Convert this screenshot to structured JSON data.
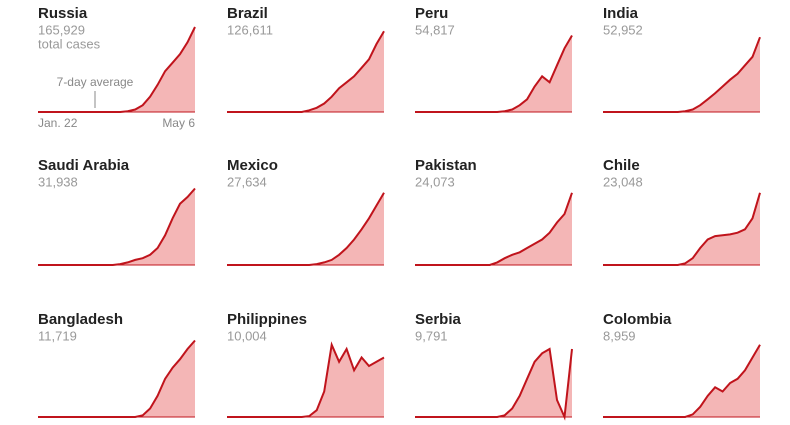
{
  "chart_data": {
    "type": "small-multiples",
    "total_note": "total cases",
    "average_note": "7-day average",
    "x_start": "Jan. 22",
    "x_end": "May 6",
    "ylim": [
      0,
      100
    ],
    "line_color": "#c0141c",
    "area_color": "#f4b6b6",
    "panels": [
      {
        "name": "Russia",
        "total": "165,929",
        "values": [
          0,
          0,
          0,
          0,
          0,
          0,
          0,
          0,
          0,
          0,
          0,
          0,
          1,
          3,
          8,
          18,
          32,
          48,
          58,
          68,
          82,
          100
        ]
      },
      {
        "name": "Brazil",
        "total": "126,611",
        "values": [
          0,
          0,
          0,
          0,
          0,
          0,
          0,
          0,
          0,
          0,
          0,
          2,
          5,
          10,
          18,
          28,
          35,
          42,
          52,
          62,
          80,
          95
        ]
      },
      {
        "name": "Peru",
        "total": "54,817",
        "values": [
          0,
          0,
          0,
          0,
          0,
          0,
          0,
          0,
          0,
          0,
          0,
          0,
          1,
          3,
          8,
          15,
          30,
          42,
          35,
          55,
          75,
          90
        ]
      },
      {
        "name": "India",
        "total": "52,952",
        "values": [
          0,
          0,
          0,
          0,
          0,
          0,
          0,
          0,
          0,
          0,
          0,
          1,
          3,
          8,
          15,
          22,
          30,
          38,
          45,
          55,
          65,
          88
        ]
      },
      {
        "name": "Saudi Arabia",
        "total": "31,938",
        "values": [
          0,
          0,
          0,
          0,
          0,
          0,
          0,
          0,
          0,
          0,
          0,
          1,
          3,
          6,
          8,
          12,
          20,
          35,
          55,
          72,
          80,
          90
        ]
      },
      {
        "name": "Mexico",
        "total": "27,634",
        "values": [
          0,
          0,
          0,
          0,
          0,
          0,
          0,
          0,
          0,
          0,
          0,
          0,
          1,
          3,
          6,
          12,
          20,
          30,
          42,
          55,
          70,
          85
        ]
      },
      {
        "name": "Pakistan",
        "total": "24,073",
        "values": [
          0,
          0,
          0,
          0,
          0,
          0,
          0,
          0,
          0,
          0,
          0,
          3,
          8,
          12,
          15,
          20,
          25,
          30,
          38,
          50,
          60,
          85
        ]
      },
      {
        "name": "Chile",
        "total": "23,048",
        "values": [
          0,
          0,
          0,
          0,
          0,
          0,
          0,
          0,
          0,
          0,
          0,
          2,
          8,
          20,
          30,
          34,
          35,
          36,
          38,
          42,
          55,
          85
        ]
      },
      {
        "name": "Bangladesh",
        "total": "11,719",
        "values": [
          0,
          0,
          0,
          0,
          0,
          0,
          0,
          0,
          0,
          0,
          0,
          0,
          0,
          0,
          2,
          10,
          25,
          45,
          58,
          68,
          80,
          90
        ]
      },
      {
        "name": "Philippines",
        "total": "10,004",
        "values": [
          0,
          0,
          0,
          0,
          0,
          0,
          0,
          0,
          0,
          0,
          0,
          1,
          8,
          30,
          85,
          65,
          80,
          55,
          70,
          60,
          65,
          70
        ]
      },
      {
        "name": "Serbia",
        "total": "9,791",
        "values": [
          0,
          0,
          0,
          0,
          0,
          0,
          0,
          0,
          0,
          0,
          0,
          0,
          2,
          10,
          25,
          45,
          65,
          75,
          80,
          20,
          0,
          80
        ]
      },
      {
        "name": "Colombia",
        "total": "8,959",
        "values": [
          0,
          0,
          0,
          0,
          0,
          0,
          0,
          0,
          0,
          0,
          0,
          0,
          3,
          12,
          25,
          35,
          30,
          40,
          45,
          55,
          70,
          85
        ]
      }
    ]
  }
}
